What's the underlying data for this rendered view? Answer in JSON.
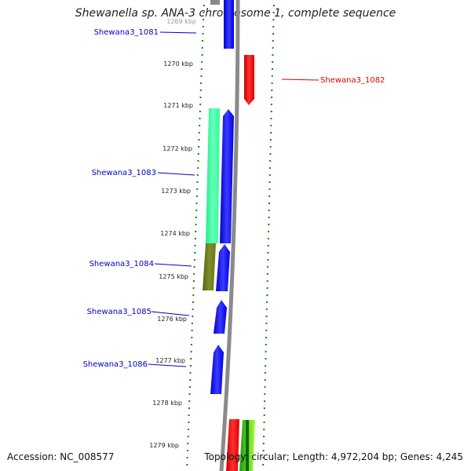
{
  "title": "Shewanella sp. ANA-3 chromosome 1, complete sequence",
  "footer": {
    "accession": "Accession: NC_008577",
    "summary": "Topology: circular; Length: 4,972,204 bp; Genes: 4,245"
  },
  "colors": {
    "blue": "#0000ff",
    "red": "#ff0000",
    "cds_teal": "#33ff99",
    "cds_olive": "#6b7a1a",
    "gc_ring": "#1a7f1a",
    "label_blue": "#0000cc",
    "label_red": "#dd0000"
  },
  "scale": {
    "ticks": [
      "1269 kbp",
      "1270 kbp",
      "1271 kbp",
      "1272 kbp",
      "1273 kbp",
      "1274 kbp",
      "1275 kbp",
      "1276 kbp",
      "1277 kbp",
      "1278 kbp",
      "1279 kbp"
    ]
  },
  "gene_labels": [
    {
      "text": "Shewana3_1081",
      "color": "blue"
    },
    {
      "text": "Shewana3_1082",
      "color": "red"
    },
    {
      "text": "Shewana3_1083",
      "color": "blue"
    },
    {
      "text": "Shewana3_1084",
      "color": "blue"
    },
    {
      "text": "Shewana3_1085",
      "color": "blue"
    },
    {
      "text": "Shewana3_1086",
      "color": "blue"
    }
  ]
}
